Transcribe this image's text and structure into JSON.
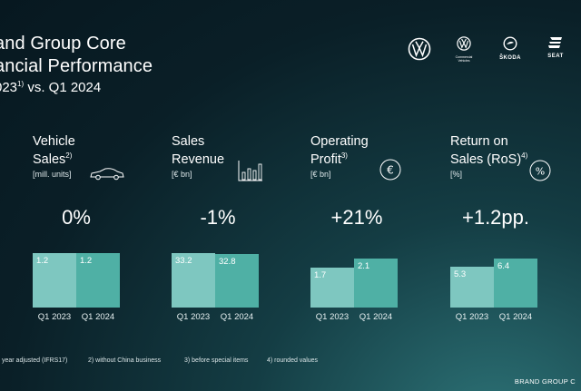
{
  "header": {
    "title_line1": "and Group Core",
    "title_line2": "ancial Performance",
    "subtitle_prefix": "023",
    "subtitle_sup": "1)",
    "subtitle_rest": " vs.  Q1 2024"
  },
  "brands": [
    {
      "name": "vw-logo",
      "label": ""
    },
    {
      "name": "vw-commercial-logo",
      "label": "Commercial Vehicles"
    },
    {
      "name": "skoda-logo",
      "label": "ŠKODA"
    },
    {
      "name": "seat-logo",
      "label": "SEAT"
    }
  ],
  "chart_data": [
    {
      "type": "bar",
      "title_line1": "Vehicle",
      "title_line2": "Sales",
      "title_sup": "2)",
      "unit": "[mill. units]",
      "icon": "car-icon",
      "change": "0%",
      "categories": [
        "Q1 2023",
        "Q1 2024"
      ],
      "values": [
        1.2,
        1.2
      ],
      "labels": [
        "1.2",
        "1.2"
      ]
    },
    {
      "type": "bar",
      "title_line1": "Sales",
      "title_line2": "Revenue",
      "title_sup": "",
      "unit": "[€ bn]",
      "icon": "bar-chart-icon",
      "change": "-1%",
      "categories": [
        "Q1 2023",
        "Q1 2024"
      ],
      "values": [
        33.2,
        32.8
      ],
      "labels": [
        "33.2",
        "32.8"
      ]
    },
    {
      "type": "bar",
      "title_line1": "Operating",
      "title_line2": "Profit",
      "title_sup": "3)",
      "unit": "[€ bn]",
      "icon": "euro-icon",
      "change": "+21%",
      "categories": [
        "Q1 2023",
        "Q1 2024"
      ],
      "values": [
        1.7,
        2.1
      ],
      "labels": [
        "1.7",
        "2.1"
      ]
    },
    {
      "type": "bar",
      "title_line1": "Return on",
      "title_line2": "Sales (RoS)",
      "title_sup": "4)",
      "unit": "[%]",
      "icon": "percent-icon",
      "change": "+1.2pp.",
      "categories": [
        "Q1 2023",
        "Q1 2024"
      ],
      "values": [
        5.3,
        6.4
      ],
      "labels": [
        "5.3",
        "6.4"
      ]
    }
  ],
  "footnotes": [
    "year adjusted (IFRS17)",
    "2) without China business",
    "3) before special items",
    "4) rounded values"
  ],
  "footer_brand": "BRAND GROUP C"
}
